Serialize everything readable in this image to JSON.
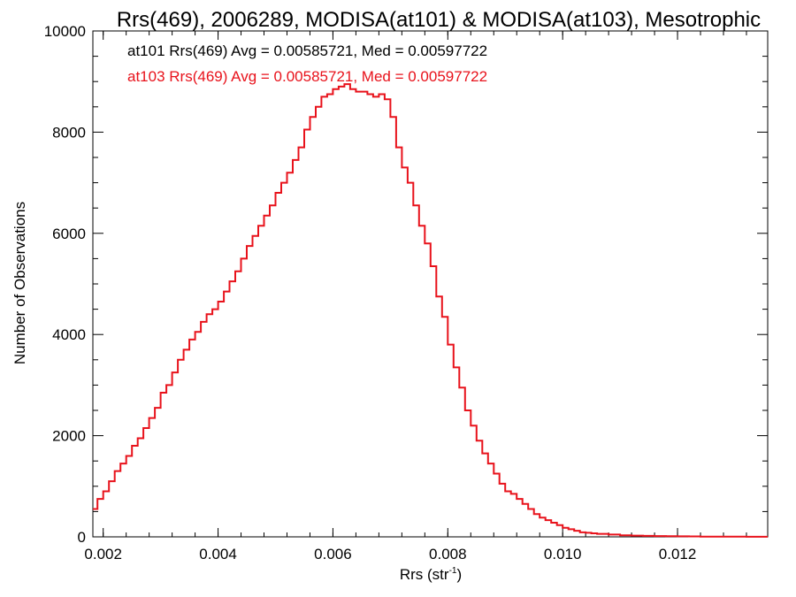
{
  "chart_data": {
    "type": "line",
    "title": "Rrs(469), 2006289, MODISA(at101) & MODISA(at103), Mesotrophic",
    "xlabel": "Rrs (str",
    "xlabel_sup": "-1",
    "xlabel_close": ")",
    "ylabel": "Number of Observations",
    "xlim": [
      0.00182,
      0.01357
    ],
    "ylim": [
      0,
      10000
    ],
    "xticks": [
      0.002,
      0.004,
      0.006,
      0.008,
      0.01,
      0.012
    ],
    "xtick_labels": [
      "0.002",
      "0.004",
      "0.006",
      "0.008",
      "0.010",
      "0.012"
    ],
    "yticks": [
      0,
      2000,
      4000,
      6000,
      8000,
      10000
    ],
    "ytick_labels": [
      "0",
      "2000",
      "4000",
      "6000",
      "8000",
      "10000"
    ],
    "grid": false,
    "annotations": [
      {
        "text": "at101 Rrs(469) Avg = 0.00585721, Med = 0.00597722",
        "color": "#000000"
      },
      {
        "text": "at103 Rrs(469) Avg = 0.00585721, Med = 0.00597722",
        "color": "#e8121b"
      }
    ],
    "series": [
      {
        "color": "#e8121b",
        "style": "step",
        "x": [
          0.00182,
          0.0019,
          0.002,
          0.0021,
          0.0022,
          0.0023,
          0.0024,
          0.0025,
          0.0026,
          0.0027,
          0.0028,
          0.0029,
          0.003,
          0.0031,
          0.0032,
          0.0033,
          0.0034,
          0.0035,
          0.0036,
          0.0037,
          0.0038,
          0.0039,
          0.004,
          0.0041,
          0.0042,
          0.0043,
          0.0044,
          0.0045,
          0.0046,
          0.0047,
          0.0048,
          0.0049,
          0.005,
          0.0051,
          0.0052,
          0.0053,
          0.0054,
          0.0055,
          0.0056,
          0.0057,
          0.0058,
          0.0059,
          0.006,
          0.0061,
          0.0062,
          0.0063,
          0.0064,
          0.0065,
          0.0066,
          0.0067,
          0.0068,
          0.0069,
          0.007,
          0.0071,
          0.0072,
          0.0073,
          0.0074,
          0.0075,
          0.0076,
          0.0077,
          0.0078,
          0.0079,
          0.008,
          0.0081,
          0.0082,
          0.0083,
          0.0084,
          0.0085,
          0.0086,
          0.0087,
          0.0088,
          0.0089,
          0.009,
          0.0091,
          0.0092,
          0.0093,
          0.0094,
          0.0095,
          0.0096,
          0.0097,
          0.0098,
          0.0099,
          0.01,
          0.0101,
          0.0102,
          0.0103,
          0.0104,
          0.0105,
          0.0106,
          0.0108,
          0.011,
          0.0112,
          0.0114,
          0.0116,
          0.0118,
          0.012,
          0.0122,
          0.0124,
          0.0126,
          0.0128,
          0.013,
          0.0132,
          0.0134,
          0.01357
        ],
        "y": [
          550,
          750,
          900,
          1100,
          1300,
          1450,
          1600,
          1800,
          1950,
          2150,
          2350,
          2550,
          2850,
          3000,
          3250,
          3500,
          3700,
          3900,
          4050,
          4250,
          4400,
          4500,
          4650,
          4850,
          5050,
          5250,
          5500,
          5750,
          5950,
          6150,
          6350,
          6550,
          6800,
          7000,
          7200,
          7450,
          7700,
          8050,
          8300,
          8500,
          8700,
          8750,
          8850,
          8900,
          8950,
          8850,
          8800,
          8800,
          8750,
          8700,
          8750,
          8650,
          8300,
          7700,
          7300,
          7000,
          6550,
          6150,
          5800,
          5350,
          4750,
          4350,
          3800,
          3350,
          2950,
          2500,
          2200,
          1900,
          1650,
          1450,
          1250,
          1050,
          900,
          850,
          750,
          650,
          550,
          450,
          380,
          330,
          280,
          230,
          180,
          150,
          120,
          90,
          80,
          70,
          60,
          45,
          30,
          25,
          20,
          15,
          12,
          10,
          8,
          6,
          5,
          4,
          3,
          2,
          2,
          2
        ]
      }
    ]
  }
}
